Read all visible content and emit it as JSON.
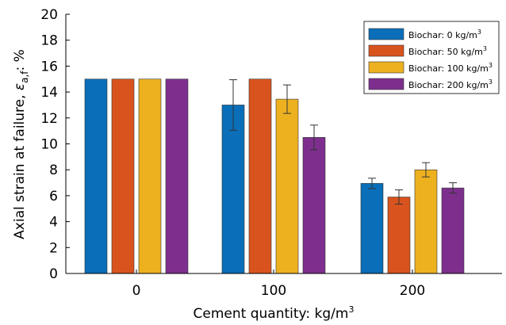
{
  "chart_data": {
    "type": "bar",
    "categories": [
      "0",
      "100",
      "200"
    ],
    "series": [
      {
        "name_prefix": "Biochar: 0 kg/m",
        "color": "#0a6eb8",
        "values": [
          15,
          13,
          6.95
        ],
        "errors": [
          null,
          1.95,
          0.4
        ]
      },
      {
        "name_prefix": "Biochar: 50 kg/m",
        "color": "#d9531e",
        "values": [
          15,
          15,
          5.9
        ],
        "errors": [
          null,
          null,
          0.55
        ]
      },
      {
        "name_prefix": "Biochar: 100 kg/m",
        "color": "#edb120",
        "values": [
          15,
          13.45,
          8.0
        ],
        "errors": [
          null,
          1.1,
          0.55
        ]
      },
      {
        "name_prefix": "Biochar: 200 kg/m",
        "color": "#7e2f8e",
        "values": [
          15,
          10.5,
          6.6
        ],
        "errors": [
          null,
          0.95,
          0.4
        ]
      }
    ],
    "legend_superscript": "3",
    "xlabel_prefix": "Cement quantity: kg/m",
    "xlabel_superscript": "3",
    "ylabel_prefix": "Axial strain at failure, ",
    "ylabel_symbol": "ε",
    "ylabel_subscript": "a,f",
    "ylabel_suffix": ": %",
    "ylim": [
      0,
      20
    ],
    "yticks": [
      "0",
      "2",
      "4",
      "6",
      "8",
      "10",
      "12",
      "14",
      "16",
      "18",
      "20"
    ],
    "legend_position": "top-right",
    "grid": false
  }
}
